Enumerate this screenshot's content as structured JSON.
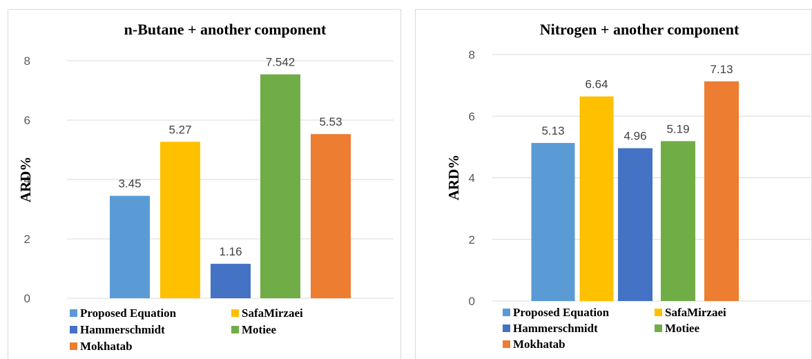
{
  "chart_data": [
    {
      "type": "bar",
      "title": "n-Butane + another component",
      "ylabel": "ARD%",
      "xlabel": "",
      "ylim": [
        0,
        8
      ],
      "yticks": [
        0,
        2,
        4,
        6,
        8
      ],
      "grid": true,
      "legend_position": "bottom",
      "categories": [
        "Proposed Equation",
        "SafaMirzaei",
        "Hammerschmidt",
        "Motiee",
        "Mokhatab"
      ],
      "values": [
        3.45,
        5.27,
        1.16,
        7.542,
        5.53
      ],
      "value_labels": [
        "3.45",
        "5.27",
        "1.16",
        "7.542",
        "5.53"
      ],
      "colors": [
        "#5b9bd5",
        "#ffc000",
        "#4472c4",
        "#70ad47",
        "#ed7d31"
      ]
    },
    {
      "type": "bar",
      "title": "Nitrogen + another component",
      "ylabel": "ARD%",
      "xlabel": "",
      "ylim": [
        0,
        8
      ],
      "yticks": [
        0,
        2,
        4,
        6,
        8
      ],
      "grid": true,
      "legend_position": "bottom",
      "categories": [
        "Proposed Equation",
        "SafaMirzaei",
        "Hammerschmidt",
        "Motiee",
        "Mokhatab"
      ],
      "values": [
        5.13,
        6.64,
        4.96,
        5.19,
        7.13
      ],
      "value_labels": [
        "5.13",
        "6.64",
        "4.96",
        "5.19",
        "7.13"
      ],
      "colors": [
        "#5b9bd5",
        "#ffc000",
        "#4472c4",
        "#70ad47",
        "#ed7d31"
      ]
    }
  ]
}
